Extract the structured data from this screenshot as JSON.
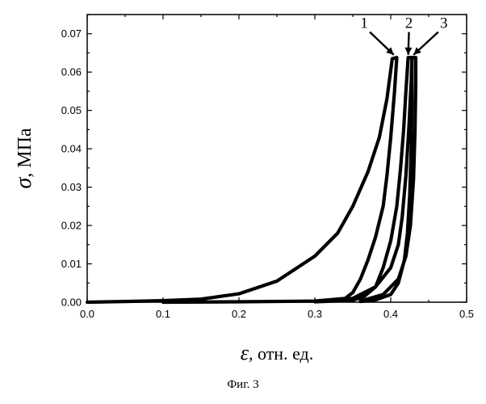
{
  "caption": "Фиг. 3",
  "chart_data": {
    "type": "line",
    "title": "",
    "ylabel": {
      "symbol": "σ",
      "unit": ", МПа"
    },
    "xlabel": {
      "symbol": "ε",
      "unit": ", отн. ед."
    },
    "xlim": [
      0,
      0.5
    ],
    "ylim": [
      0,
      0.075
    ],
    "xticks": [
      "0.0",
      "0.1",
      "0.2",
      "0.3",
      "0.4",
      "0.5"
    ],
    "yticks": [
      "0.00",
      "0.01",
      "0.02",
      "0.03",
      "0.04",
      "0.05",
      "0.06",
      "0.07"
    ],
    "grid": false,
    "legend": "none",
    "line_color": "#000000",
    "curve_labels": [
      {
        "text": "1",
        "label_at": [
          0.365,
          0.0715
        ],
        "arrow_to": [
          0.404,
          0.0645
        ]
      },
      {
        "text": "2",
        "label_at": [
          0.424,
          0.0715
        ],
        "arrow_to": [
          0.423,
          0.0645
        ]
      },
      {
        "text": "3",
        "label_at": [
          0.47,
          0.0715
        ],
        "arrow_to": [
          0.43,
          0.0645
        ]
      }
    ],
    "series": [
      {
        "name": "1",
        "loading": [
          [
            0,
            0
          ],
          [
            0.05,
            0.0002
          ],
          [
            0.1,
            0.0004
          ],
          [
            0.15,
            0.0008
          ],
          [
            0.2,
            0.0022
          ],
          [
            0.25,
            0.0055
          ],
          [
            0.3,
            0.012
          ],
          [
            0.33,
            0.018
          ],
          [
            0.35,
            0.025
          ],
          [
            0.37,
            0.034
          ],
          [
            0.385,
            0.043
          ],
          [
            0.395,
            0.053
          ],
          [
            0.402,
            0.0635
          ]
        ],
        "unloading": [
          [
            0.408,
            0.0638
          ],
          [
            0.405,
            0.055
          ],
          [
            0.4,
            0.043
          ],
          [
            0.395,
            0.033
          ],
          [
            0.39,
            0.025
          ],
          [
            0.38,
            0.017
          ],
          [
            0.37,
            0.011
          ],
          [
            0.36,
            0.006
          ],
          [
            0.35,
            0.0025
          ],
          [
            0.34,
            0.001
          ],
          [
            0.3,
            0.0003
          ],
          [
            0.2,
            0.0001
          ],
          [
            0.1,
            0
          ]
        ]
      },
      {
        "name": "2",
        "loading": [
          [
            0.3,
            0.0002
          ],
          [
            0.35,
            0.001
          ],
          [
            0.38,
            0.004
          ],
          [
            0.4,
            0.009
          ],
          [
            0.41,
            0.015
          ],
          [
            0.415,
            0.022
          ],
          [
            0.42,
            0.033
          ],
          [
            0.424,
            0.046
          ],
          [
            0.427,
            0.058
          ],
          [
            0.428,
            0.0638
          ]
        ],
        "unloading": [
          [
            0.423,
            0.0638
          ],
          [
            0.42,
            0.055
          ],
          [
            0.417,
            0.045
          ],
          [
            0.413,
            0.035
          ],
          [
            0.408,
            0.025
          ],
          [
            0.4,
            0.016
          ],
          [
            0.39,
            0.009
          ],
          [
            0.38,
            0.004
          ],
          [
            0.365,
            0.0015
          ],
          [
            0.35,
            0.0005
          ],
          [
            0.3,
            0.0001
          ]
        ]
      },
      {
        "name": "3",
        "loading": [
          [
            0.36,
            0.0003
          ],
          [
            0.39,
            0.002
          ],
          [
            0.41,
            0.006
          ],
          [
            0.42,
            0.012
          ],
          [
            0.426,
            0.02
          ],
          [
            0.43,
            0.032
          ],
          [
            0.432,
            0.045
          ],
          [
            0.433,
            0.057
          ],
          [
            0.433,
            0.0638
          ]
        ],
        "unloading": [
          [
            0.428,
            0.0638
          ],
          [
            0.428,
            0.052
          ],
          [
            0.427,
            0.04
          ],
          [
            0.425,
            0.028
          ],
          [
            0.422,
            0.018
          ],
          [
            0.418,
            0.011
          ],
          [
            0.41,
            0.005
          ],
          [
            0.4,
            0.002
          ],
          [
            0.38,
            0.0006
          ],
          [
            0.36,
            0.0002
          ]
        ]
      }
    ]
  }
}
